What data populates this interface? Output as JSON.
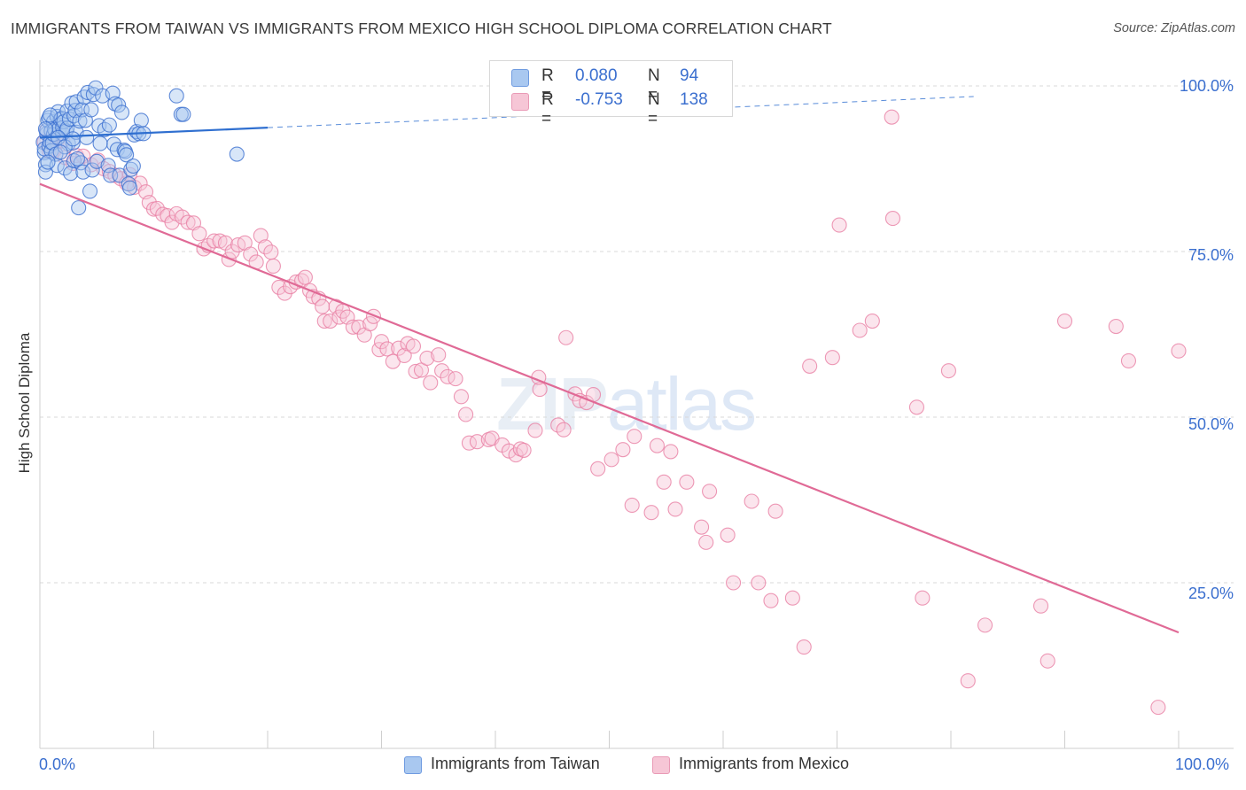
{
  "title": "IMMIGRANTS FROM TAIWAN VS IMMIGRANTS FROM MEXICO HIGH SCHOOL DIPLOMA CORRELATION CHART",
  "source": "Source: ZipAtlas.com",
  "watermark": {
    "zip": "ZIP",
    "atlas": "atlas"
  },
  "legend": {
    "r_label": "R =",
    "n_label": "N =",
    "taiwan": {
      "r": "0.080",
      "n": "94"
    },
    "mexico": {
      "r": "-0.753",
      "n": "138"
    }
  },
  "colors": {
    "taiwan_fill": "#a9c8f0",
    "taiwan_stroke": "#3b6fcf",
    "taiwan_line": "#2f6fd0",
    "mexico_fill": "#f6c6d6",
    "mexico_stroke": "#e87fa4",
    "mexico_line": "#e06a96",
    "grid": "#d9d9d9",
    "tick_text": "#3b6fcf"
  },
  "chart_data": {
    "type": "scatter",
    "xlabel": "",
    "ylabel": "High School Diploma",
    "xlim": [
      0,
      100
    ],
    "ylim": [
      0,
      100
    ],
    "x_tick_labels": [
      "0.0%",
      "100.0%"
    ],
    "y_tick_labels": [
      "100.0%",
      "75.0%",
      "50.0%",
      "25.0%"
    ],
    "y_ticks": [
      100,
      75,
      50,
      25
    ],
    "legend_position": "bottom",
    "series": [
      {
        "name": "Immigrants from Taiwan",
        "r": 0.08,
        "n": 94,
        "trend": {
          "solid": [
            [
              0,
              92.2
            ],
            [
              20,
              93.7
            ]
          ],
          "dashed": [
            [
              20,
              93.7
            ],
            [
              82,
              98.4
            ]
          ]
        },
        "points": [
          [
            0.3,
            91.5
          ],
          [
            0.4,
            89.9
          ],
          [
            0.4,
            90.5
          ],
          [
            0.5,
            88.1
          ],
          [
            0.5,
            87.0
          ],
          [
            0.6,
            92.8
          ],
          [
            0.6,
            93.3
          ],
          [
            0.7,
            94.8
          ],
          [
            0.8,
            95.2
          ],
          [
            0.8,
            90.9
          ],
          [
            0.9,
            91.5
          ],
          [
            1,
            90.2
          ],
          [
            1,
            93.2
          ],
          [
            1.1,
            91.4
          ],
          [
            1.2,
            94.6
          ],
          [
            1.2,
            92.7
          ],
          [
            1.3,
            93.4
          ],
          [
            1.4,
            89.7
          ],
          [
            1.5,
            95.4
          ],
          [
            1.5,
            88.0
          ],
          [
            1.6,
            96.1
          ],
          [
            1.7,
            93.6
          ],
          [
            1.8,
            94.9
          ],
          [
            1.9,
            95.1
          ],
          [
            2,
            92.8
          ],
          [
            2,
            93.7
          ],
          [
            2.1,
            94.6
          ],
          [
            2.2,
            87.6
          ],
          [
            2.3,
            93.2
          ],
          [
            2.4,
            96.2
          ],
          [
            2.4,
            93.6
          ],
          [
            2.5,
            91.3
          ],
          [
            2.6,
            95.0
          ],
          [
            2.7,
            86.8
          ],
          [
            2.8,
            97.4
          ],
          [
            2.9,
            91.4
          ],
          [
            3,
            95.5
          ],
          [
            3,
            88.7
          ],
          [
            3.1,
            96.3
          ],
          [
            3.2,
            93.0
          ],
          [
            3.2,
            97.6
          ],
          [
            3.4,
            81.6
          ],
          [
            3.5,
            94.7
          ],
          [
            3.6,
            88.4
          ],
          [
            3.7,
            96.4
          ],
          [
            3.8,
            87.0
          ],
          [
            3.9,
            98.3
          ],
          [
            4,
            94.8
          ],
          [
            4.2,
            99.0
          ],
          [
            4.4,
            84.1
          ],
          [
            4.5,
            96.4
          ],
          [
            4.6,
            87.3
          ],
          [
            4.7,
            98.7
          ],
          [
            4.9,
            99.7
          ],
          [
            5,
            88.6
          ],
          [
            5.2,
            94.0
          ],
          [
            5.5,
            98.5
          ],
          [
            5.7,
            93.4
          ],
          [
            6,
            88.0
          ],
          [
            6.2,
            86.5
          ],
          [
            6.4,
            98.9
          ],
          [
            6.5,
            91.2
          ],
          [
            6.6,
            97.3
          ],
          [
            6.8,
            90.4
          ],
          [
            6.9,
            97.1
          ],
          [
            7,
            86.5
          ],
          [
            7.2,
            96.0
          ],
          [
            7.4,
            90.3
          ],
          [
            7.5,
            90.1
          ],
          [
            7.6,
            89.6
          ],
          [
            7.8,
            85.2
          ],
          [
            7.9,
            84.6
          ],
          [
            8,
            87.4
          ],
          [
            8.2,
            87.9
          ],
          [
            8.3,
            92.6
          ],
          [
            8.5,
            93.1
          ],
          [
            8.7,
            92.8
          ],
          [
            8.9,
            94.8
          ],
          [
            9.1,
            92.8
          ],
          [
            12,
            98.5
          ],
          [
            12.4,
            95.7
          ],
          [
            12.6,
            95.7
          ],
          [
            17.3,
            89.7
          ],
          [
            0.5,
            93.5
          ],
          [
            0.9,
            95.6
          ],
          [
            1.6,
            92.2
          ],
          [
            2.2,
            90.8
          ],
          [
            4.1,
            92.2
          ],
          [
            5.3,
            91.3
          ],
          [
            6.1,
            94.1
          ],
          [
            1.8,
            90.0
          ],
          [
            3.3,
            89.0
          ],
          [
            0.7,
            88.5
          ],
          [
            2.9,
            92.0
          ]
        ]
      },
      {
        "name": "Immigrants from Mexico",
        "r": -0.753,
        "n": 138,
        "trend": [
          [
            0,
            85.2
          ],
          [
            100,
            17.5
          ]
        ],
        "points": [
          [
            0.4,
            91.6
          ],
          [
            0.6,
            93.3
          ],
          [
            0.8,
            90.2
          ],
          [
            1,
            92.0
          ],
          [
            1.3,
            90.3
          ],
          [
            1.5,
            91.6
          ],
          [
            2,
            91.7
          ],
          [
            2.2,
            89.2
          ],
          [
            2.9,
            88.3
          ],
          [
            3.2,
            89.5
          ],
          [
            3.8,
            89.4
          ],
          [
            4.5,
            88.1
          ],
          [
            5.1,
            88.8
          ],
          [
            5.6,
            87.5
          ],
          [
            6.1,
            87.1
          ],
          [
            6.6,
            86.5
          ],
          [
            7.1,
            86.0
          ],
          [
            7.6,
            85.3
          ],
          [
            7.9,
            86.6
          ],
          [
            8.3,
            84.7
          ],
          [
            8.8,
            85.3
          ],
          [
            9.3,
            84.0
          ],
          [
            9.6,
            82.4
          ],
          [
            10,
            81.4
          ],
          [
            10.3,
            81.5
          ],
          [
            10.8,
            80.6
          ],
          [
            11.2,
            80.4
          ],
          [
            11.6,
            79.4
          ],
          [
            12,
            80.7
          ],
          [
            12.5,
            80.2
          ],
          [
            13,
            79.4
          ],
          [
            13.5,
            79.3
          ],
          [
            14,
            77.7
          ],
          [
            14.4,
            75.4
          ],
          [
            14.8,
            75.9
          ],
          [
            15.3,
            76.6
          ],
          [
            15.8,
            76.6
          ],
          [
            16.3,
            76.3
          ],
          [
            16.6,
            73.8
          ],
          [
            16.9,
            75.0
          ],
          [
            17.4,
            76.0
          ],
          [
            18,
            76.3
          ],
          [
            18.5,
            74.6
          ],
          [
            19,
            73.4
          ],
          [
            19.4,
            77.4
          ],
          [
            19.8,
            75.7
          ],
          [
            20.3,
            74.9
          ],
          [
            20.5,
            72.8
          ],
          [
            21,
            69.6
          ],
          [
            21.5,
            68.7
          ],
          [
            22,
            69.7
          ],
          [
            22.5,
            70.4
          ],
          [
            23,
            70.6
          ],
          [
            23.3,
            71.1
          ],
          [
            23.7,
            69.1
          ],
          [
            24,
            68.2
          ],
          [
            24.5,
            67.9
          ],
          [
            24.8,
            66.7
          ],
          [
            25,
            64.5
          ],
          [
            25.5,
            64.5
          ],
          [
            26,
            66.7
          ],
          [
            26.3,
            65.1
          ],
          [
            26.6,
            66.0
          ],
          [
            27,
            65.1
          ],
          [
            27.5,
            63.6
          ],
          [
            28,
            63.6
          ],
          [
            28.5,
            62.4
          ],
          [
            29,
            64.1
          ],
          [
            29.3,
            65.2
          ],
          [
            29.8,
            60.2
          ],
          [
            30,
            61.4
          ],
          [
            30.5,
            60.3
          ],
          [
            31,
            58.4
          ],
          [
            31.5,
            60.4
          ],
          [
            32,
            59.3
          ],
          [
            32.3,
            61.1
          ],
          [
            32.8,
            60.7
          ],
          [
            33,
            56.9
          ],
          [
            33.5,
            57.1
          ],
          [
            34,
            58.9
          ],
          [
            34.3,
            55.2
          ],
          [
            35,
            59.4
          ],
          [
            35.3,
            57.0
          ],
          [
            35.8,
            56.1
          ],
          [
            36.5,
            55.8
          ],
          [
            37,
            53.1
          ],
          [
            37.4,
            50.4
          ],
          [
            37.7,
            46.1
          ],
          [
            38.4,
            46.3
          ],
          [
            39.4,
            46.6
          ],
          [
            39.7,
            46.8
          ],
          [
            40.6,
            45.8
          ],
          [
            41.2,
            44.9
          ],
          [
            41.8,
            44.3
          ],
          [
            42.2,
            45.2
          ],
          [
            42.5,
            45.0
          ],
          [
            43.5,
            48.0
          ],
          [
            43.9,
            54.2
          ],
          [
            45.5,
            48.8
          ],
          [
            46,
            48.1
          ],
          [
            47,
            53.5
          ],
          [
            47.4,
            52.5
          ],
          [
            48,
            52.2
          ],
          [
            48.6,
            53.4
          ],
          [
            49,
            42.2
          ],
          [
            50.2,
            43.6
          ],
          [
            51.2,
            45.1
          ],
          [
            52,
            36.7
          ],
          [
            53.7,
            35.6
          ],
          [
            54.8,
            40.2
          ],
          [
            55.8,
            36.1
          ],
          [
            56.8,
            40.2
          ],
          [
            58.1,
            33.4
          ],
          [
            58.8,
            38.8
          ],
          [
            60.4,
            32.2
          ],
          [
            60.9,
            25.0
          ],
          [
            63.1,
            25.0
          ],
          [
            64.6,
            35.8
          ],
          [
            66.1,
            22.7
          ],
          [
            67.6,
            57.7
          ],
          [
            69.6,
            59.0
          ],
          [
            72,
            63.1
          ],
          [
            73.1,
            64.5
          ],
          [
            77,
            51.5
          ],
          [
            79.8,
            57.0
          ],
          [
            83,
            18.6
          ],
          [
            87.9,
            21.5
          ],
          [
            90,
            64.5
          ],
          [
            94.5,
            63.7
          ],
          [
            95.6,
            58.5
          ],
          [
            100,
            60.0
          ],
          [
            70.2,
            79.0
          ],
          [
            74.9,
            80.0
          ],
          [
            74.8,
            95.3
          ],
          [
            43.8,
            56.0
          ],
          [
            46.2,
            62.0
          ],
          [
            52.2,
            47.1
          ],
          [
            54.2,
            45.7
          ],
          [
            55.4,
            44.8
          ],
          [
            58.5,
            31.1
          ],
          [
            62.5,
            37.3
          ],
          [
            64.2,
            22.3
          ],
          [
            67.1,
            15.3
          ],
          [
            77.5,
            22.7
          ],
          [
            81.5,
            10.2
          ],
          [
            88.5,
            13.2
          ],
          [
            98.2,
            6.2
          ]
        ]
      }
    ]
  },
  "bottom_legend": {
    "taiwan": "Immigrants from Taiwan",
    "mexico": "Immigrants from Mexico"
  }
}
